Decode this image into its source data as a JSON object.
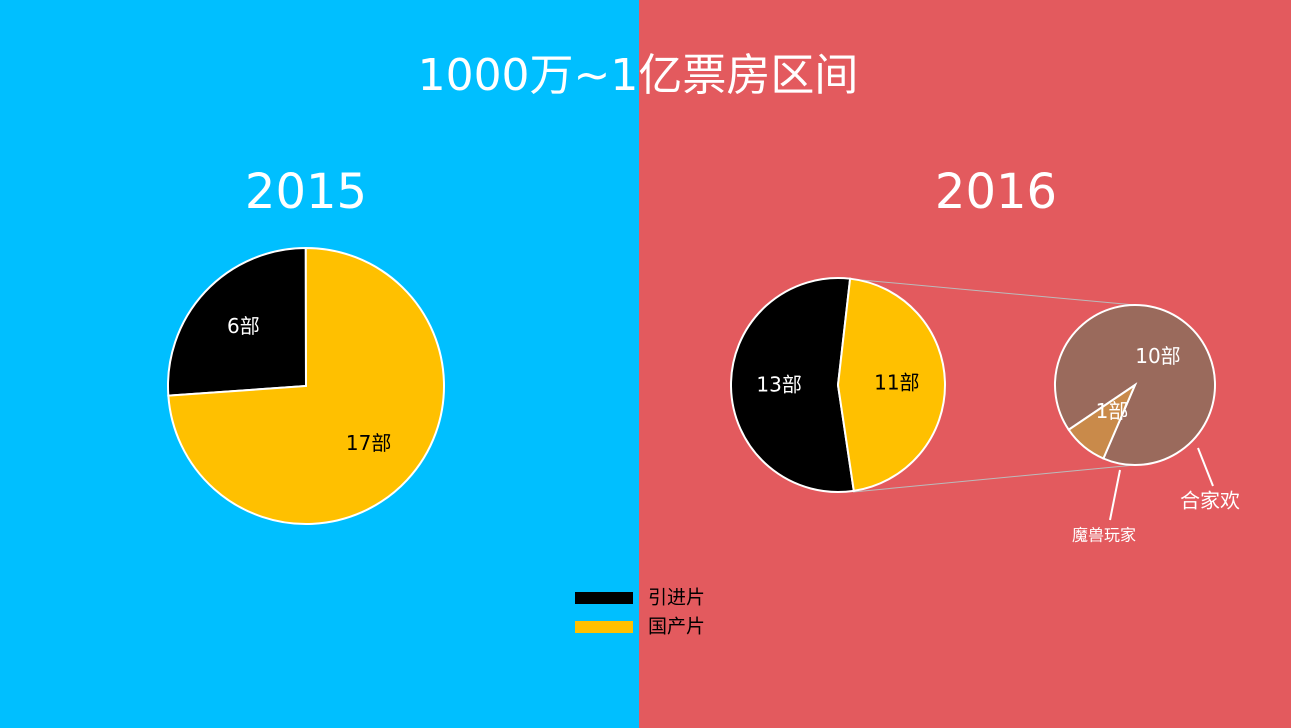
{
  "title": "1000万~1亿票房区间",
  "chart_data": [
    {
      "type": "pie",
      "title": "2015",
      "categories": [
        "引进片",
        "国产片"
      ],
      "values": [
        6,
        17
      ],
      "value_labels": [
        "6部",
        "17部"
      ],
      "colors": [
        "#000000",
        "#ffc000"
      ],
      "legend": "bottom"
    },
    {
      "type": "pie",
      "title": "2016",
      "categories": [
        "引进片",
        "国产片"
      ],
      "values": [
        13,
        11
      ],
      "value_labels": [
        "13部",
        "11部"
      ],
      "colors": [
        "#000000",
        "#ffc000"
      ]
    },
    {
      "type": "pie",
      "categories": [
        "合家欢",
        "魔兽玩家"
      ],
      "values": [
        10,
        1
      ],
      "value_labels": [
        "10部",
        "1部"
      ],
      "colors": [
        "#9a6a5c",
        "#c98a4a"
      ]
    }
  ]
}
